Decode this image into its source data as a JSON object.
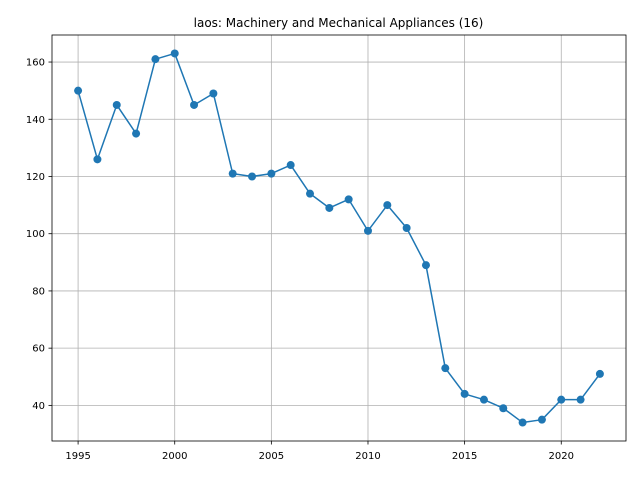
{
  "chart_data": {
    "type": "line",
    "title": "laos: Machinery and Mechanical Appliances (16)",
    "xlabel": "",
    "ylabel": "",
    "grid": true,
    "x": [
      1995,
      1996,
      1997,
      1998,
      1999,
      2000,
      2001,
      2002,
      2003,
      2004,
      2005,
      2006,
      2007,
      2008,
      2009,
      2010,
      2011,
      2012,
      2013,
      2014,
      2015,
      2016,
      2017,
      2018,
      2019,
      2020,
      2021,
      2022
    ],
    "series": [
      {
        "values": [
          150,
          126,
          145,
          135,
          161,
          163,
          145,
          149,
          121,
          120,
          121,
          124,
          114,
          109,
          112,
          101,
          110,
          102,
          89,
          53,
          44,
          42,
          39,
          34,
          35,
          42,
          42,
          51
        ],
        "color": "#1f77b4"
      }
    ],
    "xlim": [
      1993.65,
      2023.35
    ],
    "ylim": [
      27.55,
      169.45
    ],
    "xticks": [
      1995,
      2000,
      2005,
      2010,
      2015,
      2020
    ],
    "yticks": [
      40,
      60,
      80,
      100,
      120,
      140,
      160
    ]
  }
}
